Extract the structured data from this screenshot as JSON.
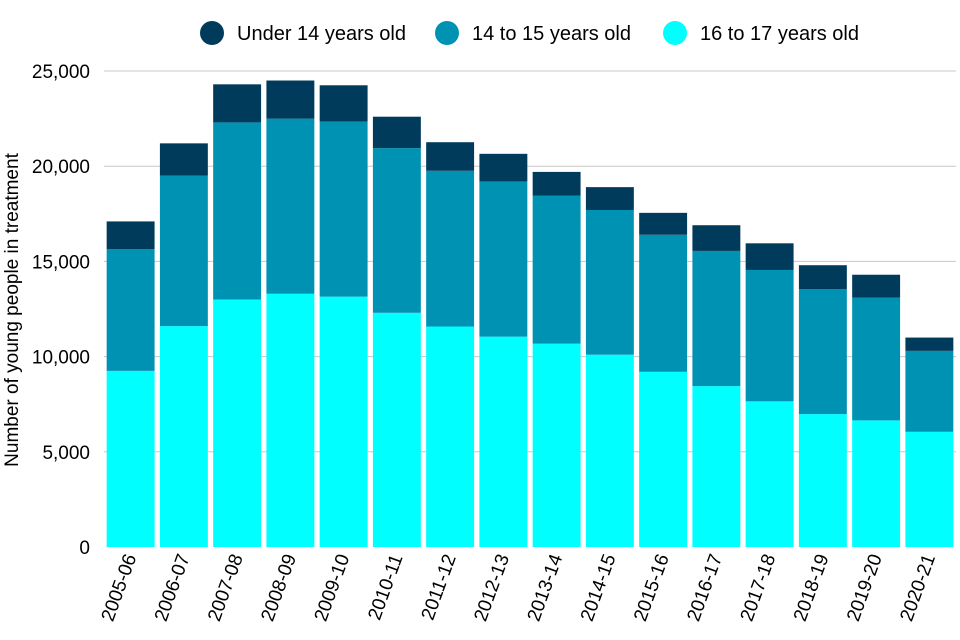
{
  "chart_data": {
    "type": "bar",
    "stacked": true,
    "title": "",
    "xlabel": "",
    "ylabel": "Number of young people in treatment",
    "ylim": [
      0,
      25000
    ],
    "yticks": [
      0,
      5000,
      10000,
      15000,
      20000,
      25000
    ],
    "ytick_labels": [
      "0",
      "5,000",
      "10,000",
      "15,000",
      "20,000",
      "25,000"
    ],
    "grid": "horizontal",
    "legend_position": "top",
    "categories": [
      "2005-06",
      "2006-07",
      "2007-08",
      "2008-09",
      "2009-10",
      "2010-11",
      "2011-12",
      "2012-13",
      "2013-14",
      "2014-15",
      "2015-16",
      "2016-17",
      "2017-18",
      "2018-19",
      "2019-20",
      "2020-21"
    ],
    "series": [
      {
        "name": "16 to 17 years old",
        "color": "#00ffff",
        "values": [
          9250,
          11600,
          13000,
          13300,
          13150,
          12300,
          11580,
          11050,
          10680,
          10100,
          9200,
          8450,
          7650,
          6980,
          6650,
          6050
        ]
      },
      {
        "name": "14 to 15 years old",
        "color": "#0092b3",
        "values": [
          6400,
          7900,
          9300,
          9200,
          9200,
          8650,
          8180,
          8150,
          7780,
          7600,
          7200,
          7100,
          6900,
          6570,
          6450,
          4250
        ]
      },
      {
        "name": "Under 14 years old",
        "color": "#003b5c",
        "values": [
          1450,
          1700,
          2000,
          2000,
          1900,
          1650,
          1500,
          1450,
          1240,
          1200,
          1150,
          1350,
          1400,
          1250,
          1200,
          700
        ]
      }
    ],
    "legend_order": [
      "Under 14 years old",
      "14 to 15 years old",
      "16 to 17 years old"
    ]
  }
}
